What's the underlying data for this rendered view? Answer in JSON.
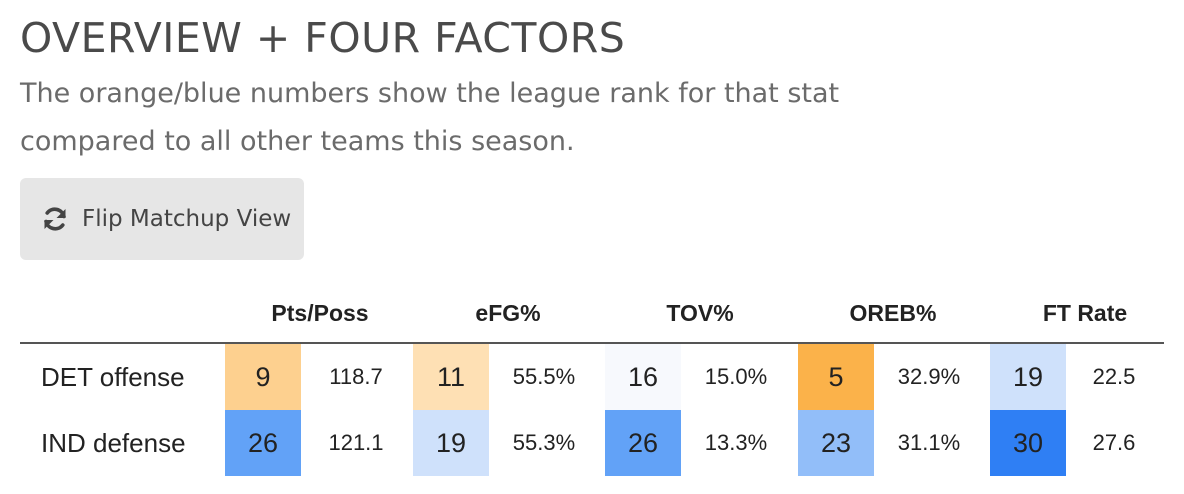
{
  "page": {
    "title": "OVERVIEW + FOUR FACTORS",
    "subtitle": "The orange/blue numbers show the league rank for that stat compared to all other teams this season."
  },
  "button": {
    "icon": "refresh-icon",
    "label": "Flip Matchup View"
  },
  "table": {
    "columns": [
      "Pts/Poss",
      "eFG%",
      "TOV%",
      "OREB%",
      "FT Rate"
    ],
    "rows": [
      {
        "label": "DET offense",
        "cells": [
          {
            "rank": "9",
            "value": "118.7",
            "color": "#fdd08f"
          },
          {
            "rank": "11",
            "value": "55.5%",
            "color": "#fee0b4"
          },
          {
            "rank": "16",
            "value": "15.0%",
            "color": "#f7f9fd"
          },
          {
            "rank": "5",
            "value": "32.9%",
            "color": "#fbb24a"
          },
          {
            "rank": "19",
            "value": "22.5",
            "color": "#cfe1fb"
          }
        ]
      },
      {
        "label": "IND defense",
        "cells": [
          {
            "rank": "26",
            "value": "121.1",
            "color": "#62a2f7"
          },
          {
            "rank": "19",
            "value": "55.3%",
            "color": "#cfe1fb"
          },
          {
            "rank": "26",
            "value": "13.3%",
            "color": "#62a2f7"
          },
          {
            "rank": "23",
            "value": "31.1%",
            "color": "#92bef9"
          },
          {
            "rank": "30",
            "value": "27.6",
            "color": "#2f7ff4"
          }
        ]
      }
    ]
  }
}
